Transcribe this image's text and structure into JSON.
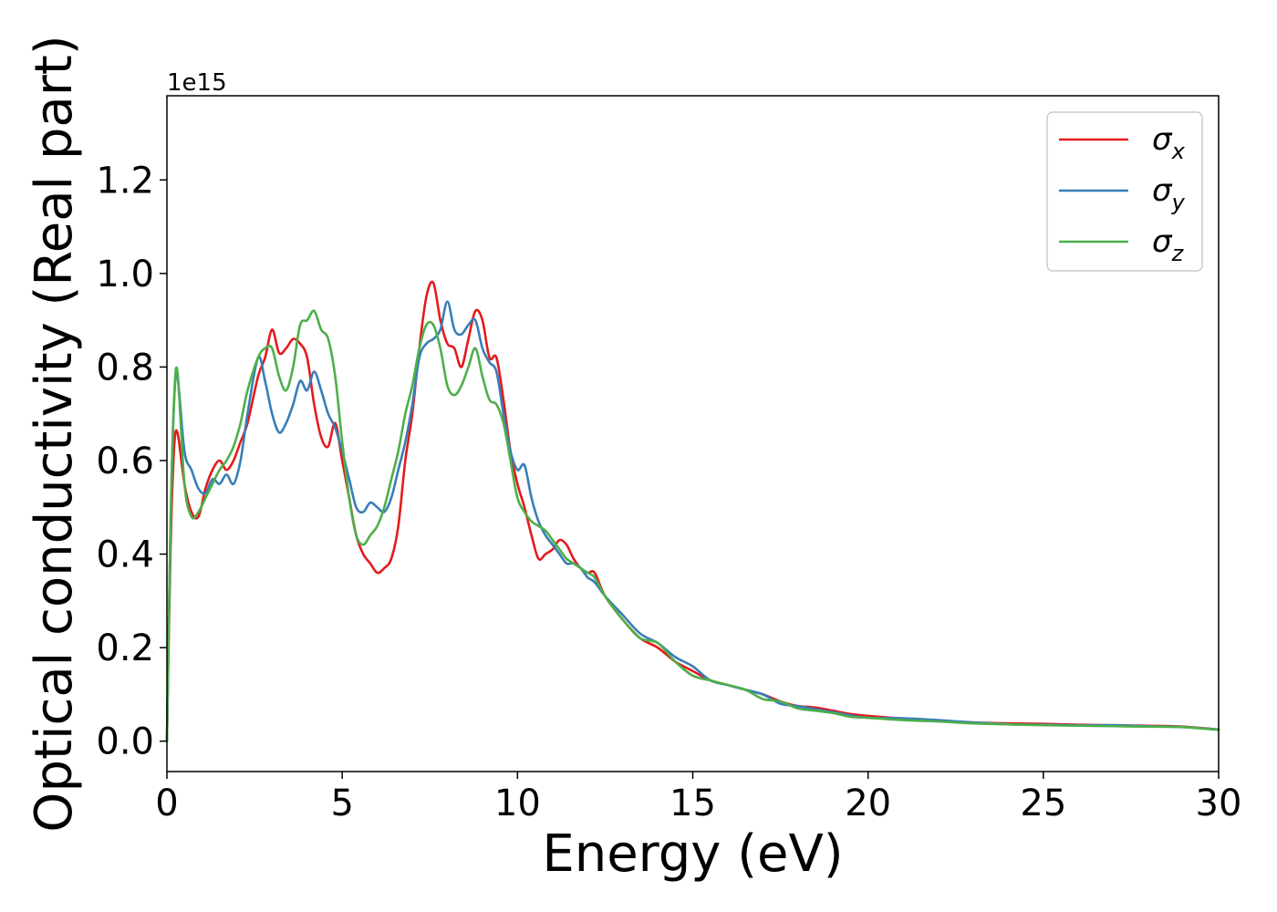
{
  "chart_data": {
    "type": "line",
    "title": "",
    "xlabel": "Energy (eV)",
    "ylabel": "Optical conductivity (Real part)",
    "y_scale_label": "1e15",
    "y_scale": 1000000000000000.0,
    "xlim": [
      0,
      30
    ],
    "ylim": [
      -0.065,
      1.38
    ],
    "xticks": [
      0,
      5,
      10,
      15,
      20,
      25,
      30
    ],
    "xtick_labels": [
      "0",
      "5",
      "10",
      "15",
      "20",
      "25",
      "30"
    ],
    "yticks": [
      0.0,
      0.2,
      0.4,
      0.6,
      0.8,
      1.0,
      1.2
    ],
    "ytick_labels": [
      "0.0",
      "0.2",
      "0.4",
      "0.6",
      "0.8",
      "1.0",
      "1.2"
    ],
    "grid": false,
    "legend_position": "top-right",
    "series": [
      {
        "name": "σx",
        "symbol": "σ",
        "subscript": "x",
        "color": "#e41a1c",
        "x": [
          0,
          0.1,
          0.2,
          0.3,
          0.5,
          0.7,
          0.9,
          1.1,
          1.3,
          1.5,
          1.7,
          1.9,
          2.1,
          2.3,
          2.6,
          2.8,
          3.0,
          3.2,
          3.4,
          3.6,
          3.8,
          4.0,
          4.2,
          4.4,
          4.6,
          4.8,
          5.0,
          5.2,
          5.4,
          5.6,
          5.8,
          6.0,
          6.2,
          6.4,
          6.6,
          6.8,
          7.0,
          7.2,
          7.4,
          7.6,
          7.8,
          8.0,
          8.2,
          8.4,
          8.6,
          8.8,
          9.0,
          9.2,
          9.4,
          9.6,
          9.8,
          10.0,
          10.2,
          10.4,
          10.6,
          10.8,
          11.0,
          11.2,
          11.4,
          11.6,
          11.8,
          12.0,
          12.2,
          12.5,
          13.0,
          13.5,
          14.0,
          14.5,
          15.0,
          15.5,
          16.0,
          16.5,
          17.0,
          17.5,
          18.0,
          18.5,
          19.0,
          19.5,
          20.0,
          21.0,
          22.0,
          23.0,
          24.0,
          25.0,
          26.0,
          27.0,
          28.0,
          29.0,
          30.0
        ],
        "values": [
          0.0,
          0.4,
          0.62,
          0.66,
          0.55,
          0.49,
          0.48,
          0.54,
          0.58,
          0.6,
          0.58,
          0.6,
          0.64,
          0.68,
          0.78,
          0.82,
          0.88,
          0.83,
          0.84,
          0.86,
          0.85,
          0.82,
          0.72,
          0.65,
          0.63,
          0.68,
          0.6,
          0.52,
          0.44,
          0.4,
          0.38,
          0.36,
          0.37,
          0.39,
          0.46,
          0.6,
          0.7,
          0.84,
          0.95,
          0.98,
          0.9,
          0.85,
          0.84,
          0.8,
          0.86,
          0.92,
          0.9,
          0.82,
          0.82,
          0.73,
          0.62,
          0.55,
          0.5,
          0.44,
          0.39,
          0.4,
          0.41,
          0.43,
          0.42,
          0.39,
          0.37,
          0.36,
          0.36,
          0.31,
          0.26,
          0.22,
          0.2,
          0.17,
          0.15,
          0.13,
          0.12,
          0.11,
          0.1,
          0.085,
          0.075,
          0.072,
          0.065,
          0.058,
          0.054,
          0.048,
          0.044,
          0.04,
          0.038,
          0.037,
          0.035,
          0.034,
          0.033,
          0.031,
          0.025
        ]
      },
      {
        "name": "σy",
        "symbol": "σ",
        "subscript": "y",
        "color": "#377eb8",
        "x": [
          0,
          0.1,
          0.2,
          0.3,
          0.5,
          0.7,
          0.9,
          1.1,
          1.3,
          1.5,
          1.7,
          1.9,
          2.1,
          2.3,
          2.6,
          2.8,
          3.0,
          3.2,
          3.4,
          3.6,
          3.8,
          4.0,
          4.2,
          4.4,
          4.6,
          4.8,
          5.0,
          5.2,
          5.4,
          5.6,
          5.8,
          6.0,
          6.2,
          6.4,
          6.6,
          6.8,
          7.0,
          7.2,
          7.4,
          7.6,
          7.8,
          8.0,
          8.2,
          8.4,
          8.6,
          8.8,
          9.0,
          9.2,
          9.4,
          9.6,
          9.8,
          10.0,
          10.2,
          10.4,
          10.6,
          10.8,
          11.0,
          11.2,
          11.4,
          11.6,
          11.8,
          12.0,
          12.2,
          12.5,
          13.0,
          13.5,
          14.0,
          14.5,
          15.0,
          15.5,
          16.0,
          16.5,
          17.0,
          17.5,
          18.0,
          18.5,
          19.0,
          19.5,
          20.0,
          21.0,
          22.0,
          23.0,
          24.0,
          25.0,
          26.0,
          27.0,
          28.0,
          29.0,
          30.0
        ],
        "values": [
          0.0,
          0.45,
          0.72,
          0.78,
          0.62,
          0.58,
          0.54,
          0.53,
          0.56,
          0.55,
          0.57,
          0.55,
          0.6,
          0.7,
          0.82,
          0.77,
          0.7,
          0.66,
          0.68,
          0.72,
          0.77,
          0.75,
          0.79,
          0.75,
          0.7,
          0.67,
          0.62,
          0.56,
          0.5,
          0.49,
          0.51,
          0.5,
          0.49,
          0.52,
          0.58,
          0.64,
          0.72,
          0.82,
          0.85,
          0.86,
          0.88,
          0.94,
          0.88,
          0.87,
          0.89,
          0.9,
          0.84,
          0.81,
          0.79,
          0.7,
          0.62,
          0.58,
          0.59,
          0.52,
          0.47,
          0.44,
          0.42,
          0.4,
          0.38,
          0.38,
          0.37,
          0.35,
          0.34,
          0.31,
          0.27,
          0.23,
          0.21,
          0.18,
          0.16,
          0.13,
          0.12,
          0.11,
          0.1,
          0.08,
          0.075,
          0.068,
          0.062,
          0.055,
          0.05,
          0.049,
          0.045,
          0.04,
          0.036,
          0.035,
          0.034,
          0.034,
          0.032,
          0.03,
          0.025
        ]
      },
      {
        "name": "σz",
        "symbol": "σ",
        "subscript": "z",
        "color": "#4daf4a",
        "x": [
          0,
          0.1,
          0.2,
          0.3,
          0.5,
          0.7,
          0.9,
          1.1,
          1.3,
          1.5,
          1.7,
          1.9,
          2.1,
          2.3,
          2.6,
          2.8,
          3.0,
          3.2,
          3.4,
          3.6,
          3.8,
          4.0,
          4.2,
          4.4,
          4.6,
          4.8,
          5.0,
          5.2,
          5.4,
          5.6,
          5.8,
          6.0,
          6.2,
          6.4,
          6.6,
          6.8,
          7.0,
          7.2,
          7.4,
          7.6,
          7.8,
          8.0,
          8.2,
          8.4,
          8.6,
          8.8,
          9.0,
          9.2,
          9.4,
          9.6,
          9.8,
          10.0,
          10.2,
          10.4,
          10.6,
          10.8,
          11.0,
          11.2,
          11.4,
          11.6,
          11.8,
          12.0,
          12.2,
          12.5,
          13.0,
          13.5,
          14.0,
          14.5,
          15.0,
          15.5,
          16.0,
          16.5,
          17.0,
          17.5,
          18.0,
          18.5,
          19.0,
          19.5,
          20.0,
          21.0,
          22.0,
          23.0,
          24.0,
          25.0,
          26.0,
          27.0,
          28.0,
          29.0,
          30.0
        ],
        "values": [
          0.0,
          0.45,
          0.72,
          0.79,
          0.55,
          0.48,
          0.49,
          0.52,
          0.55,
          0.58,
          0.6,
          0.63,
          0.68,
          0.75,
          0.82,
          0.84,
          0.84,
          0.78,
          0.75,
          0.8,
          0.89,
          0.9,
          0.92,
          0.88,
          0.86,
          0.78,
          0.64,
          0.52,
          0.44,
          0.42,
          0.44,
          0.46,
          0.5,
          0.56,
          0.62,
          0.7,
          0.76,
          0.84,
          0.89,
          0.89,
          0.84,
          0.76,
          0.74,
          0.76,
          0.8,
          0.84,
          0.78,
          0.73,
          0.72,
          0.68,
          0.6,
          0.52,
          0.49,
          0.47,
          0.46,
          0.45,
          0.43,
          0.41,
          0.39,
          0.38,
          0.37,
          0.36,
          0.35,
          0.31,
          0.26,
          0.22,
          0.21,
          0.17,
          0.14,
          0.13,
          0.12,
          0.11,
          0.09,
          0.085,
          0.07,
          0.065,
          0.06,
          0.052,
          0.05,
          0.045,
          0.042,
          0.038,
          0.036,
          0.034,
          0.033,
          0.032,
          0.031,
          0.03,
          0.024
        ]
      }
    ]
  }
}
